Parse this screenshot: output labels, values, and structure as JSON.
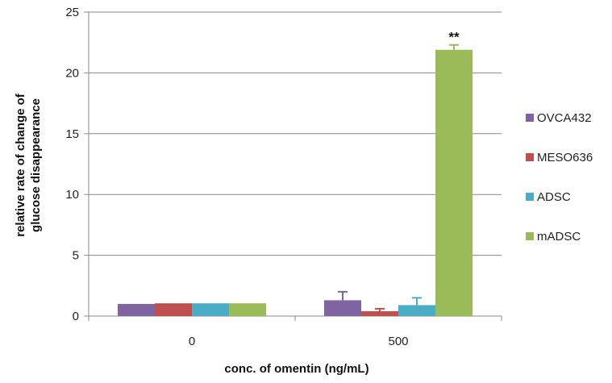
{
  "chart_data": {
    "type": "bar",
    "categories": [
      "0",
      "500"
    ],
    "series": [
      {
        "name": "OVCA432",
        "values": [
          1.0,
          1.3
        ],
        "errors": [
          0,
          0.7
        ],
        "color": "#8064A2"
      },
      {
        "name": "MESO636",
        "values": [
          1.05,
          0.4
        ],
        "errors": [
          0,
          0.2
        ],
        "color": "#C0504D"
      },
      {
        "name": "ADSC",
        "values": [
          1.05,
          0.9
        ],
        "errors": [
          0,
          0.6
        ],
        "color": "#4BACC6"
      },
      {
        "name": "mADSC",
        "values": [
          1.05,
          21.9
        ],
        "errors": [
          0,
          0.4
        ],
        "color": "#9BBB59"
      }
    ],
    "xlabel": "conc. of omentin (ng/mL)",
    "ylabel": [
      "relative rate of change of",
      "glucose disappearance"
    ],
    "ylim": [
      0,
      25
    ],
    "yticks": [
      0,
      5,
      10,
      15,
      20,
      25
    ],
    "grid": true,
    "legend_position": "right",
    "annotations": [
      {
        "text": "**",
        "category": "500",
        "series": "mADSC"
      }
    ]
  }
}
